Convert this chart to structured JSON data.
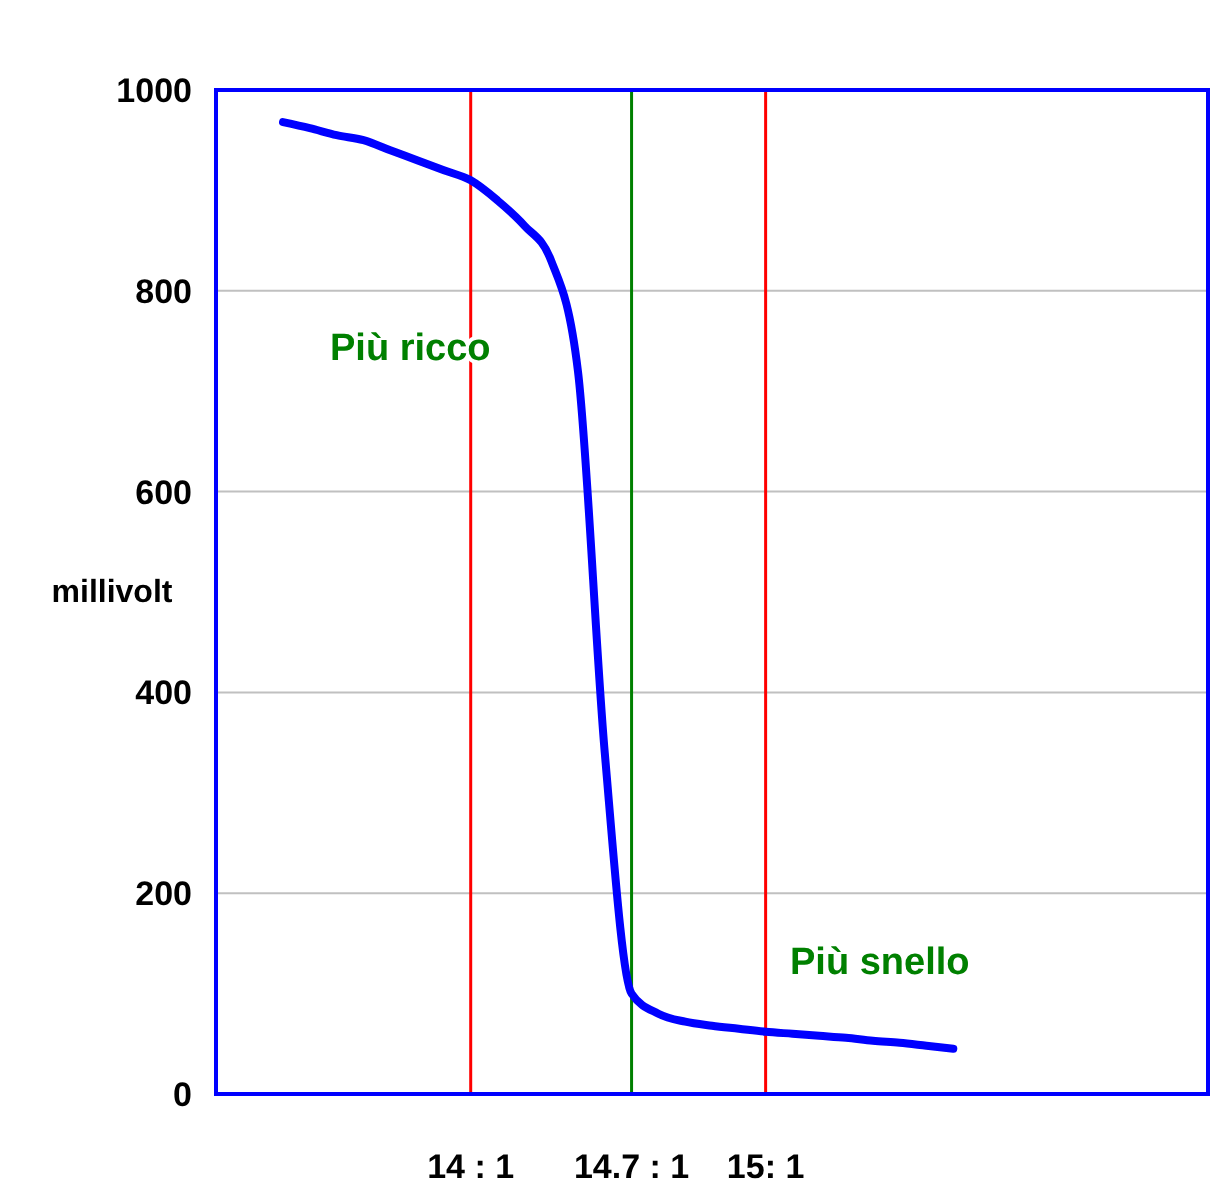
{
  "chart_data": {
    "type": "line",
    "ylabel": "millivolt",
    "categories": [
      null,
      null,
      null,
      null,
      null,
      null,
      null,
      null,
      null,
      "14 : 1",
      null,
      null,
      null,
      null,
      null,
      "14.7 : 1",
      null,
      null,
      null,
      null,
      "15: 1",
      null,
      null,
      null,
      null,
      null,
      null,
      null,
      null,
      null,
      null,
      null,
      null,
      null,
      null,
      null,
      null
    ],
    "series": [
      {
        "color": "#0000ff",
        "values": [
          null,
          null,
          968,
          962,
          955,
          950,
          940,
          930,
          920,
          910,
          890,
          865,
          830,
          720,
          340,
          100,
          80,
          72,
          68,
          65,
          62,
          60,
          58,
          56,
          53,
          51,
          48,
          45,
          null,
          null,
          null,
          null,
          null,
          null,
          null,
          null,
          null
        ]
      }
    ],
    "ylim": [
      0,
      1000
    ],
    "yticks": [
      0,
      200,
      400,
      600,
      800,
      1000
    ],
    "grid": "y",
    "marker": "none",
    "line_style": "solid",
    "ref_lines": [
      {
        "axis": "x",
        "value": "14 : 1",
        "label": null,
        "color": "#ff0000"
      },
      {
        "axis": "x",
        "value": "14.7 : 1",
        "label": null,
        "color": "#008000"
      },
      {
        "axis": "x",
        "value": "15: 1",
        "label": null,
        "color": "#ff0000"
      }
    ],
    "annotations": [
      "Più ricco",
      "Più snello"
    ]
  }
}
